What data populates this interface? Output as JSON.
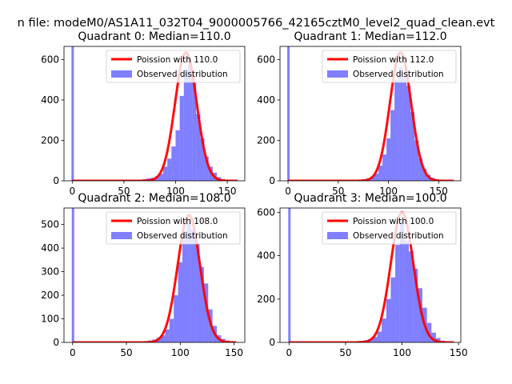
{
  "figure": {
    "suptitle": "n file: modeM0/AS1A11_032T04_9000005766_42165cztM0_level2_quad_clean.evt"
  },
  "colors": {
    "hist": "#0000ff",
    "poisson": "#ff0000",
    "axes": "#000000",
    "background": "#ffffff"
  },
  "chart_data": [
    {
      "type": "bar",
      "title": "Quadrant 0: Median=110.0",
      "legend": {
        "placement": "top-right",
        "line_label": "Poission with 110.0",
        "hist_label": "Observed distribution"
      },
      "xlim": [
        -8,
        167
      ],
      "ylim": [
        0,
        665
      ],
      "xticks": [
        0,
        50,
        100,
        150
      ],
      "yticks": [
        0,
        200,
        400,
        600
      ],
      "median": 110,
      "zero_bin_count": 665,
      "bin_width": 4,
      "bins": [
        [
          64,
          5
        ],
        [
          68,
          8
        ],
        [
          72,
          12
        ],
        [
          76,
          15
        ],
        [
          80,
          22
        ],
        [
          84,
          35
        ],
        [
          88,
          70
        ],
        [
          92,
          110
        ],
        [
          96,
          170
        ],
        [
          100,
          250
        ],
        [
          104,
          420
        ],
        [
          108,
          550
        ],
        [
          112,
          600
        ],
        [
          116,
          490
        ],
        [
          120,
          330
        ],
        [
          124,
          210
        ],
        [
          128,
          120
        ],
        [
          132,
          70
        ],
        [
          136,
          40
        ],
        [
          140,
          18
        ],
        [
          144,
          8
        ],
        [
          148,
          4
        ],
        [
          152,
          2
        ]
      ],
      "poisson_peak": 635,
      "poisson_range": [
        0,
        160
      ]
    },
    {
      "type": "bar",
      "title": "Quadrant 1: Median=112.0",
      "legend": {
        "placement": "top-right",
        "line_label": "Poission with 112.0",
        "hist_label": "Observed distribution"
      },
      "xlim": [
        -8,
        172
      ],
      "ylim": [
        0,
        665
      ],
      "xticks": [
        0,
        50,
        100,
        150
      ],
      "yticks": [
        0,
        200,
        400,
        600
      ],
      "median": 112,
      "zero_bin_count": 665,
      "bin_width": 4,
      "bins": [
        [
          70,
          5
        ],
        [
          74,
          8
        ],
        [
          78,
          12
        ],
        [
          82,
          20
        ],
        [
          86,
          35
        ],
        [
          90,
          75
        ],
        [
          94,
          130
        ],
        [
          98,
          210
        ],
        [
          102,
          350
        ],
        [
          106,
          500
        ],
        [
          110,
          560
        ],
        [
          114,
          520
        ],
        [
          118,
          470
        ],
        [
          122,
          340
        ],
        [
          126,
          200
        ],
        [
          130,
          110
        ],
        [
          134,
          60
        ],
        [
          138,
          30
        ],
        [
          142,
          15
        ],
        [
          146,
          8
        ],
        [
          150,
          4
        ]
      ],
      "poisson_peak": 635,
      "poisson_range": [
        0,
        165
      ]
    },
    {
      "type": "bar",
      "title": "Quadrant 2: Median=108.0",
      "legend": {
        "placement": "top-right",
        "line_label": "Poission with 108.0",
        "hist_label": "Observed distribution"
      },
      "xlim": [
        -8,
        160
      ],
      "ylim": [
        0,
        570
      ],
      "xticks": [
        0,
        50,
        100,
        150
      ],
      "yticks": [
        0,
        100,
        200,
        300,
        400,
        500
      ],
      "median": 108,
      "zero_bin_count": 570,
      "bin_width": 4,
      "bins": [
        [
          66,
          5
        ],
        [
          70,
          8
        ],
        [
          74,
          12
        ],
        [
          78,
          20
        ],
        [
          82,
          30
        ],
        [
          86,
          55
        ],
        [
          90,
          100
        ],
        [
          94,
          200
        ],
        [
          98,
          340
        ],
        [
          102,
          470
        ],
        [
          106,
          510
        ],
        [
          110,
          480
        ],
        [
          114,
          420
        ],
        [
          118,
          320
        ],
        [
          122,
          250
        ],
        [
          126,
          140
        ],
        [
          130,
          70
        ],
        [
          134,
          30
        ],
        [
          138,
          15
        ],
        [
          142,
          8
        ],
        [
          146,
          4
        ]
      ],
      "poisson_peak": 540,
      "poisson_range": [
        0,
        152
      ]
    },
    {
      "type": "bar",
      "title": "Quadrant 3: Median=100.0",
      "legend": {
        "placement": "top-right",
        "line_label": "Poission with 100.0",
        "hist_label": "Observed distribution"
      },
      "xlim": [
        -8,
        152
      ],
      "ylim": [
        0,
        620
      ],
      "xticks": [
        0,
        50,
        100,
        150
      ],
      "yticks": [
        0,
        200,
        400,
        600
      ],
      "median": 100,
      "zero_bin_count": 620,
      "bin_width": 4,
      "bins": [
        [
          58,
          4
        ],
        [
          62,
          7
        ],
        [
          66,
          10
        ],
        [
          70,
          15
        ],
        [
          74,
          25
        ],
        [
          78,
          50
        ],
        [
          82,
          110
        ],
        [
          86,
          200
        ],
        [
          90,
          300
        ],
        [
          94,
          450
        ],
        [
          98,
          560
        ],
        [
          102,
          470
        ],
        [
          106,
          420
        ],
        [
          110,
          340
        ],
        [
          114,
          250
        ],
        [
          118,
          160
        ],
        [
          122,
          90
        ],
        [
          126,
          45
        ],
        [
          130,
          20
        ],
        [
          134,
          8
        ]
      ],
      "poisson_peak": 600,
      "poisson_range": [
        0,
        146
      ]
    }
  ]
}
